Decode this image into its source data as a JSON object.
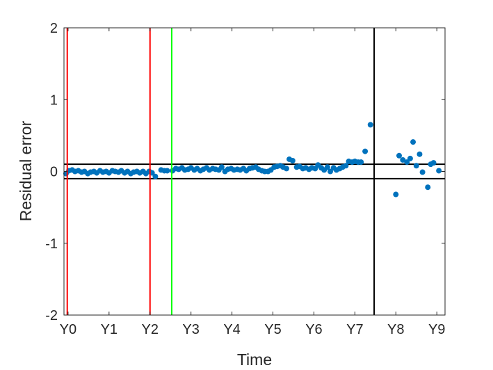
{
  "chart_data": {
    "type": "scatter",
    "title": "",
    "xlabel": "Time",
    "ylabel": "Residual error",
    "ylim": [
      -2,
      2
    ],
    "xlim": [
      -0.1,
      9.2
    ],
    "grid": false,
    "x_ticks": [
      {
        "value": 0,
        "label": "Y0"
      },
      {
        "value": 1,
        "label": "Y1"
      },
      {
        "value": 2,
        "label": "Y2"
      },
      {
        "value": 3,
        "label": "Y3"
      },
      {
        "value": 4,
        "label": "Y4"
      },
      {
        "value": 5,
        "label": "Y5"
      },
      {
        "value": 6,
        "label": "Y6"
      },
      {
        "value": 7,
        "label": "Y7"
      },
      {
        "value": 8,
        "label": "Y8"
      },
      {
        "value": 9,
        "label": "Y9"
      }
    ],
    "y_ticks": [
      {
        "value": 2,
        "label": "2"
      },
      {
        "value": 1,
        "label": "1"
      },
      {
        "value": 0,
        "label": "0"
      },
      {
        "value": -1,
        "label": "-1"
      },
      {
        "value": -2,
        "label": "-2"
      }
    ],
    "vertical_lines": [
      {
        "x": -0.02,
        "color": "#ff0000"
      },
      {
        "x": 2.0,
        "color": "#ff0000"
      },
      {
        "x": 2.53,
        "color": "#00ff00"
      },
      {
        "x": 7.47,
        "color": "#000000"
      }
    ],
    "horizontal_lines": [
      {
        "y": 0.1,
        "color": "#000000"
      },
      {
        "y": -0.1,
        "color": "#000000"
      }
    ],
    "series": [
      {
        "color": "#0072bd",
        "points": [
          [
            -0.05,
            -0.03
          ],
          [
            0.02,
            0.01
          ],
          [
            0.1,
            0.02
          ],
          [
            0.17,
            0.0
          ],
          [
            0.25,
            0.01
          ],
          [
            0.33,
            -0.01
          ],
          [
            0.4,
            0.0
          ],
          [
            0.48,
            -0.03
          ],
          [
            0.55,
            -0.01
          ],
          [
            0.63,
            0.0
          ],
          [
            0.7,
            -0.02
          ],
          [
            0.78,
            0.01
          ],
          [
            0.85,
            -0.01
          ],
          [
            0.93,
            0.0
          ],
          [
            1.0,
            -0.02
          ],
          [
            1.08,
            0.01
          ],
          [
            1.15,
            0.0
          ],
          [
            1.23,
            -0.01
          ],
          [
            1.3,
            0.01
          ],
          [
            1.38,
            -0.02
          ],
          [
            1.45,
            0.0
          ],
          [
            1.53,
            -0.03
          ],
          [
            1.6,
            -0.01
          ],
          [
            1.68,
            0.0
          ],
          [
            1.75,
            -0.02
          ],
          [
            1.83,
            0.0
          ],
          [
            1.9,
            -0.03
          ],
          [
            1.98,
            0.0
          ],
          [
            2.05,
            -0.02
          ],
          [
            2.13,
            -0.07
          ],
          [
            2.27,
            0.02
          ],
          [
            2.35,
            0.01
          ],
          [
            2.42,
            0.01
          ],
          [
            2.55,
            0.01
          ],
          [
            2.63,
            0.04
          ],
          [
            2.7,
            0.03
          ],
          [
            2.78,
            0.05
          ],
          [
            2.85,
            0.02
          ],
          [
            2.93,
            0.03
          ],
          [
            3.0,
            0.05
          ],
          [
            3.08,
            0.02
          ],
          [
            3.15,
            0.04
          ],
          [
            3.23,
            0.01
          ],
          [
            3.3,
            0.03
          ],
          [
            3.38,
            0.05
          ],
          [
            3.45,
            0.02
          ],
          [
            3.53,
            0.04
          ],
          [
            3.6,
            0.03
          ],
          [
            3.68,
            0.02
          ],
          [
            3.75,
            0.06
          ],
          [
            3.83,
            0.0
          ],
          [
            3.9,
            0.03
          ],
          [
            3.98,
            0.04
          ],
          [
            4.05,
            0.02
          ],
          [
            4.13,
            0.03
          ],
          [
            4.2,
            0.02
          ],
          [
            4.28,
            0.04
          ],
          [
            4.35,
            0.01
          ],
          [
            4.43,
            0.04
          ],
          [
            4.5,
            0.05
          ],
          [
            4.58,
            0.06
          ],
          [
            4.65,
            0.03
          ],
          [
            4.73,
            0.01
          ],
          [
            4.8,
            0.0
          ],
          [
            4.88,
            0.0
          ],
          [
            4.95,
            0.02
          ],
          [
            5.03,
            0.06
          ],
          [
            5.1,
            0.07
          ],
          [
            5.18,
            0.08
          ],
          [
            5.25,
            0.06
          ],
          [
            5.33,
            0.04
          ],
          [
            5.4,
            0.17
          ],
          [
            5.48,
            0.15
          ],
          [
            5.58,
            0.06
          ],
          [
            5.65,
            0.07
          ],
          [
            5.73,
            0.04
          ],
          [
            5.8,
            0.05
          ],
          [
            5.88,
            0.03
          ],
          [
            5.95,
            0.05
          ],
          [
            6.03,
            0.04
          ],
          [
            6.1,
            0.09
          ],
          [
            6.18,
            0.05
          ],
          [
            6.25,
            0.02
          ],
          [
            6.33,
            0.06
          ],
          [
            6.4,
            0.0
          ],
          [
            6.48,
            0.05
          ],
          [
            6.55,
            0.02
          ],
          [
            6.63,
            0.04
          ],
          [
            6.7,
            0.06
          ],
          [
            6.78,
            0.08
          ],
          [
            6.85,
            0.14
          ],
          [
            6.93,
            0.13
          ],
          [
            7.0,
            0.14
          ],
          [
            7.08,
            0.13
          ],
          [
            7.15,
            0.13
          ],
          [
            7.25,
            0.28
          ],
          [
            7.38,
            0.65
          ],
          [
            8.0,
            -0.32
          ],
          [
            8.08,
            0.22
          ],
          [
            8.17,
            0.16
          ],
          [
            8.27,
            0.13
          ],
          [
            8.35,
            0.18
          ],
          [
            8.42,
            0.41
          ],
          [
            8.5,
            0.08
          ],
          [
            8.58,
            0.24
          ],
          [
            8.65,
            -0.01
          ],
          [
            8.78,
            -0.22
          ],
          [
            8.85,
            0.1
          ],
          [
            8.92,
            0.12
          ],
          [
            9.05,
            0.01
          ]
        ]
      }
    ]
  }
}
